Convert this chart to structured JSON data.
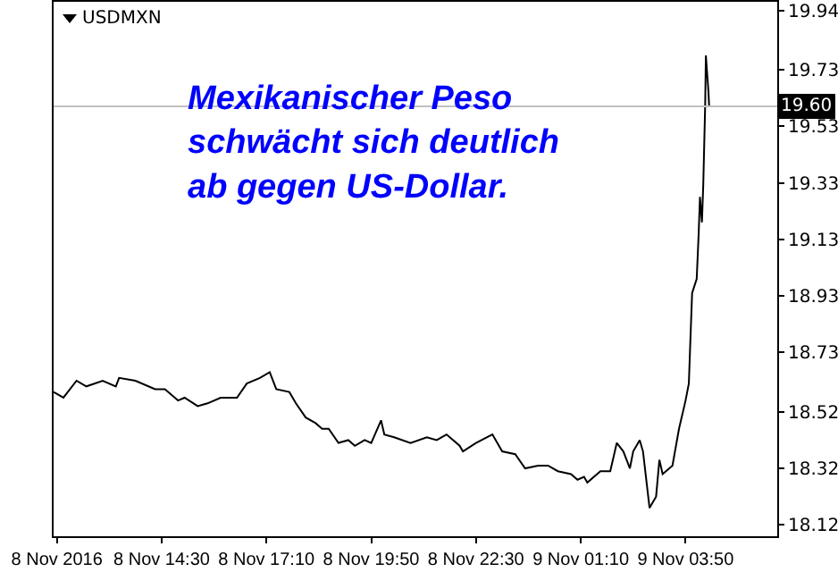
{
  "chart_data": {
    "type": "line",
    "title": "USDMXN",
    "x": [
      "2016-11-08T11:45",
      "2016-11-08T12:00",
      "2016-11-08T12:20",
      "2016-11-08T12:35",
      "2016-11-08T13:00",
      "2016-11-08T13:20",
      "2016-11-08T13:25",
      "2016-11-08T13:50",
      "2016-11-08T14:20",
      "2016-11-08T14:35",
      "2016-11-08T14:45",
      "2016-11-08T14:55",
      "2016-11-08T15:05",
      "2016-11-08T15:25",
      "2016-11-08T15:40",
      "2016-11-08T16:00",
      "2016-11-08T16:25",
      "2016-11-08T16:40",
      "2016-11-08T17:00",
      "2016-11-08T17:15",
      "2016-11-08T17:25",
      "2016-11-08T17:45",
      "2016-11-08T17:55",
      "2016-11-08T18:10",
      "2016-11-08T18:25",
      "2016-11-08T18:35",
      "2016-11-08T18:45",
      "2016-11-08T19:00",
      "2016-11-08T19:15",
      "2016-11-08T19:25",
      "2016-11-08T19:40",
      "2016-11-08T19:50",
      "2016-11-08T20:05",
      "2016-11-08T20:10",
      "2016-11-08T20:25",
      "2016-11-08T20:50",
      "2016-11-08T21:15",
      "2016-11-08T21:30",
      "2016-11-08T21:45",
      "2016-11-08T22:05",
      "2016-11-08T22:10",
      "2016-11-08T22:30",
      "2016-11-08T22:55",
      "2016-11-08T23:10",
      "2016-11-08T23:30",
      "2016-11-08T23:45",
      "2016-11-09T00:05",
      "2016-11-09T00:20",
      "2016-11-09T00:35",
      "2016-11-09T00:55",
      "2016-11-09T01:05",
      "2016-11-09T01:15",
      "2016-11-09T01:20",
      "2016-11-09T01:40",
      "2016-11-09T01:55",
      "2016-11-09T02:05",
      "2016-11-09T02:15",
      "2016-11-09T02:25",
      "2016-11-09T02:30",
      "2016-11-09T02:40",
      "2016-11-09T02:45",
      "2016-11-09T02:55",
      "2016-11-09T03:05",
      "2016-11-09T03:10",
      "2016-11-09T03:15",
      "2016-11-09T03:30",
      "2016-11-09T03:40",
      "2016-11-09T03:50",
      "2016-11-09T03:55",
      "2016-11-09T03:57",
      "2016-11-09T04:00",
      "2016-11-09T04:07",
      "2016-11-09T04:10",
      "2016-11-09T04:12",
      "2016-11-09T04:15",
      "2016-11-09T04:17",
      "2016-11-09T04:20",
      "2016-11-09T04:21",
      "2016-11-09T04:25",
      "2016-11-09T04:26"
    ],
    "series": [
      {
        "color": "#000000",
        "values": [
          18.59,
          18.57,
          18.63,
          18.61,
          18.63,
          18.61,
          18.64,
          18.63,
          18.6,
          18.6,
          18.58,
          18.56,
          18.57,
          18.54,
          18.55,
          18.57,
          18.57,
          18.62,
          18.64,
          18.66,
          18.6,
          18.59,
          18.55,
          18.5,
          18.48,
          18.46,
          18.46,
          18.41,
          18.42,
          18.4,
          18.42,
          18.41,
          18.49,
          18.44,
          18.43,
          18.41,
          18.43,
          18.42,
          18.44,
          18.4,
          18.38,
          18.41,
          18.44,
          18.38,
          18.37,
          18.32,
          18.33,
          18.33,
          18.31,
          18.3,
          18.28,
          18.29,
          18.27,
          18.31,
          18.31,
          18.41,
          18.38,
          18.32,
          18.38,
          18.42,
          18.38,
          18.18,
          18.22,
          18.35,
          18.3,
          18.33,
          18.46,
          18.56,
          18.62,
          18.75,
          18.94,
          18.99,
          19.15,
          19.28,
          19.19,
          19.32,
          19.61,
          19.78,
          19.65,
          19.6
        ]
      }
    ],
    "xlim": [
      "2016-11-08T11:45",
      "2016-11-09T06:10"
    ],
    "xticks": [
      {
        "value": "2016-11-08T11:50",
        "label": "8 Nov 2016"
      },
      {
        "value": "2016-11-08T14:30",
        "label": "8 Nov 14:30"
      },
      {
        "value": "2016-11-08T17:10",
        "label": "8 Nov 17:10"
      },
      {
        "value": "2016-11-08T19:50",
        "label": "8 Nov 19:50"
      },
      {
        "value": "2016-11-08T22:30",
        "label": "8 Nov 22:30"
      },
      {
        "value": "2016-11-09T01:10",
        "label": "9 Nov 01:10"
      },
      {
        "value": "2016-11-09T03:50",
        "label": "9 Nov 03:50"
      }
    ],
    "ylim": [
      18.08,
      19.97
    ],
    "yticks": [
      18.12,
      18.32,
      18.52,
      18.73,
      18.93,
      19.13,
      19.33,
      19.53,
      19.73,
      19.94
    ],
    "ref_lines": [
      {
        "axis": "y",
        "value": 19.6,
        "label": "19.60",
        "color": "#c0c0c0"
      }
    ],
    "annotations": [
      "Mexikanischer Peso\nschwächt sich deutlich\nab gegen US-Dollar."
    ],
    "grid": false,
    "marker": "none",
    "line_style": "solid"
  }
}
